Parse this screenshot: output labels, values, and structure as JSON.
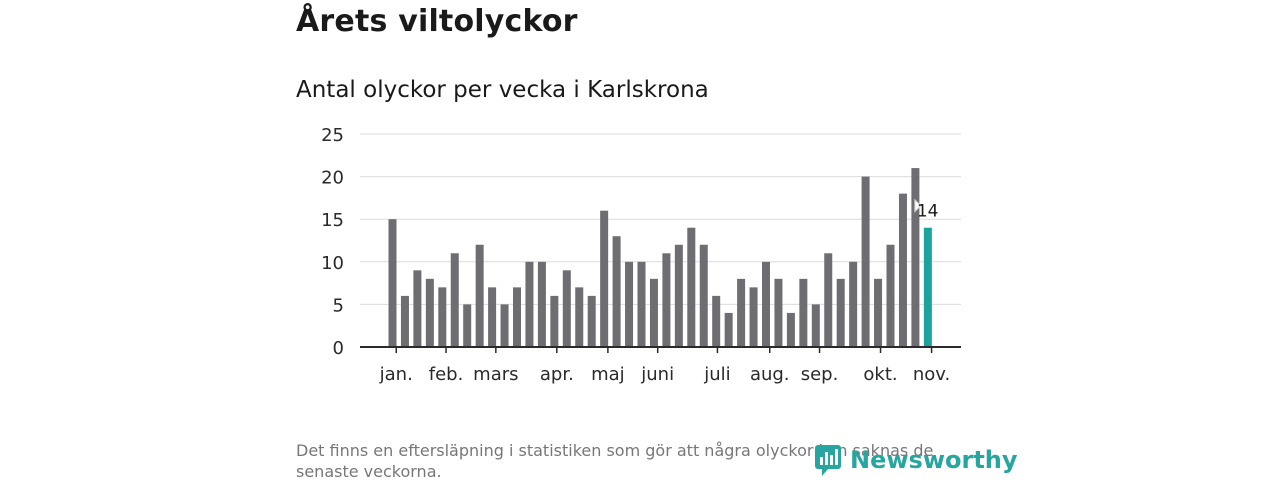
{
  "title": "Årets viltolyckor",
  "subtitle": "Antal olyckor per vecka i Karlskrona",
  "footnote": "Det finns en eftersläpning i statistiken som gör att några olyckor kan saknas de senaste veckorna.",
  "brand": "Newsworthy",
  "colors": {
    "bar": "#6d6d72",
    "highlight": "#1ba39c",
    "grid": "#dcdcdc",
    "axis": "#2a2a2a",
    "brand": "#27a59f"
  },
  "chart_data": {
    "type": "bar",
    "title": "Antal olyckor per vecka i Karlskrona",
    "xlabel": "",
    "ylabel": "",
    "ylim": [
      0,
      25
    ],
    "yticks": [
      0,
      5,
      10,
      15,
      20,
      25
    ],
    "weeks": [
      1,
      2,
      3,
      4,
      5,
      6,
      7,
      8,
      9,
      10,
      11,
      12,
      13,
      14,
      15,
      16,
      17,
      18,
      19,
      20,
      21,
      22,
      23,
      24,
      25,
      26,
      27,
      28,
      29,
      30,
      31,
      32,
      33,
      34,
      35,
      36,
      37,
      38,
      39,
      40,
      41,
      42,
      43,
      44
    ],
    "values": [
      15,
      6,
      9,
      8,
      7,
      11,
      5,
      12,
      7,
      5,
      7,
      10,
      10,
      6,
      9,
      7,
      6,
      16,
      13,
      10,
      10,
      8,
      11,
      12,
      14,
      12,
      6,
      4,
      8,
      7,
      10,
      8,
      4,
      8,
      5,
      11,
      8,
      10,
      20,
      8,
      12,
      18,
      21,
      14
    ],
    "highlight_index": 43,
    "highlight_label": "14",
    "month_labels": [
      {
        "label": "jan.",
        "week": 1.3
      },
      {
        "label": "feb.",
        "week": 5.3
      },
      {
        "label": "mars",
        "week": 9.3
      },
      {
        "label": "apr.",
        "week": 14.2
      },
      {
        "label": "maj",
        "week": 18.3
      },
      {
        "label": "juni",
        "week": 22.3
      },
      {
        "label": "juli",
        "week": 27.1
      },
      {
        "label": "aug.",
        "week": 31.3
      },
      {
        "label": "sep.",
        "week": 35.3
      },
      {
        "label": "okt.",
        "week": 40.2
      },
      {
        "label": "nov.",
        "week": 44.3
      }
    ]
  }
}
